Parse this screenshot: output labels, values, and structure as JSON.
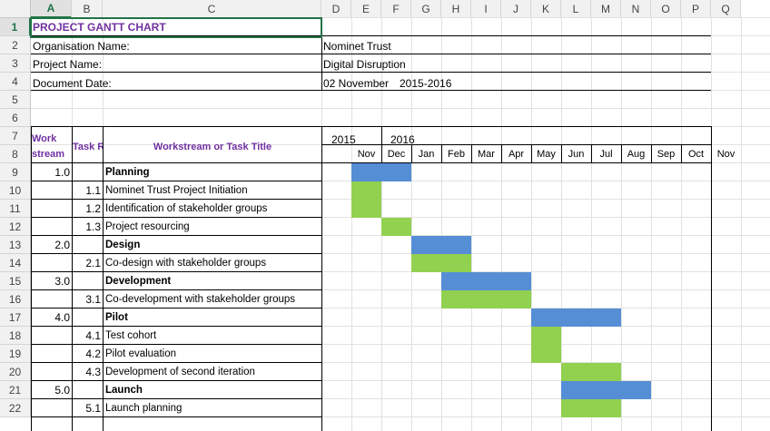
{
  "column_headers": [
    "A",
    "B",
    "C",
    "D",
    "E",
    "F",
    "G",
    "H",
    "I",
    "J",
    "K",
    "L",
    "M",
    "N",
    "O",
    "P",
    "Q"
  ],
  "row_numbers": [
    "1",
    "2",
    "3",
    "4",
    "5",
    "6",
    "7",
    "8",
    "9",
    "10",
    "11",
    "12",
    "13",
    "14",
    "15",
    "16",
    "17",
    "18",
    "19",
    "20",
    "21",
    "22"
  ],
  "title": "PROJECT GANTT CHART",
  "info": {
    "org_label": "Organisation Name:",
    "org_value": "Nominet Trust",
    "proj_label": "Project Name:",
    "proj_value": "Digital Disruption",
    "date_label": "Document Date:",
    "date_value": "02 November",
    "date_period": "2015-2016"
  },
  "headers": {
    "workstream_line1": "Work",
    "workstream_line2": "stream",
    "task_ref": "Task R",
    "task_title": "Workstream or Task Title",
    "year1": "2015",
    "year2": "2016",
    "months": [
      "Nov",
      "Dec",
      "Jan",
      "Feb",
      "Mar",
      "Apr",
      "May",
      "Jun",
      "Jul",
      "Aug",
      "Sep",
      "Oct",
      "Nov"
    ]
  },
  "tasks": [
    {
      "ws": "1.0",
      "ref": "",
      "title": "Planning",
      "bold": true,
      "start": 0,
      "span": 2,
      "color": "#558ed5"
    },
    {
      "ws": "",
      "ref": "1.1",
      "title": "Nominet Trust Project Initiation",
      "bold": false,
      "start": 0,
      "span": 1,
      "color": "#92d050"
    },
    {
      "ws": "",
      "ref": "1.2",
      "title": "Identification of stakeholder groups",
      "bold": false,
      "start": 0,
      "span": 1,
      "color": "#92d050"
    },
    {
      "ws": "",
      "ref": "1.3",
      "title": "Project resourcing",
      "bold": false,
      "start": 1,
      "span": 1,
      "color": "#92d050"
    },
    {
      "ws": "2.0",
      "ref": "",
      "title": "Design",
      "bold": true,
      "start": 2,
      "span": 2,
      "color": "#558ed5"
    },
    {
      "ws": "",
      "ref": "2.1",
      "title": "Co-design with stakeholder groups",
      "bold": false,
      "start": 2,
      "span": 2,
      "color": "#92d050"
    },
    {
      "ws": "3.0",
      "ref": "",
      "title": "Development",
      "bold": true,
      "start": 3,
      "span": 3,
      "color": "#558ed5"
    },
    {
      "ws": "",
      "ref": "3.1",
      "title": "Co-development with stakeholder groups",
      "bold": false,
      "start": 3,
      "span": 3,
      "color": "#92d050"
    },
    {
      "ws": "4.0",
      "ref": "",
      "title": "Pilot",
      "bold": true,
      "start": 6,
      "span": 3,
      "color": "#558ed5"
    },
    {
      "ws": "",
      "ref": "4.1",
      "title": "Test cohort",
      "bold": false,
      "start": 6,
      "span": 1,
      "color": "#92d050"
    },
    {
      "ws": "",
      "ref": "4.2",
      "title": "Pilot evaluation",
      "bold": false,
      "start": 6,
      "span": 1,
      "color": "#92d050"
    },
    {
      "ws": "",
      "ref": "4.3",
      "title": "Development of second iteration",
      "bold": false,
      "start": 7,
      "span": 2,
      "color": "#92d050"
    },
    {
      "ws": "5.0",
      "ref": "",
      "title": "Launch",
      "bold": true,
      "start": 7,
      "span": 3,
      "color": "#558ed5"
    },
    {
      "ws": "",
      "ref": "5.1",
      "title": "Launch planning",
      "bold": false,
      "start": 7,
      "span": 2,
      "color": "#92d050"
    }
  ]
}
